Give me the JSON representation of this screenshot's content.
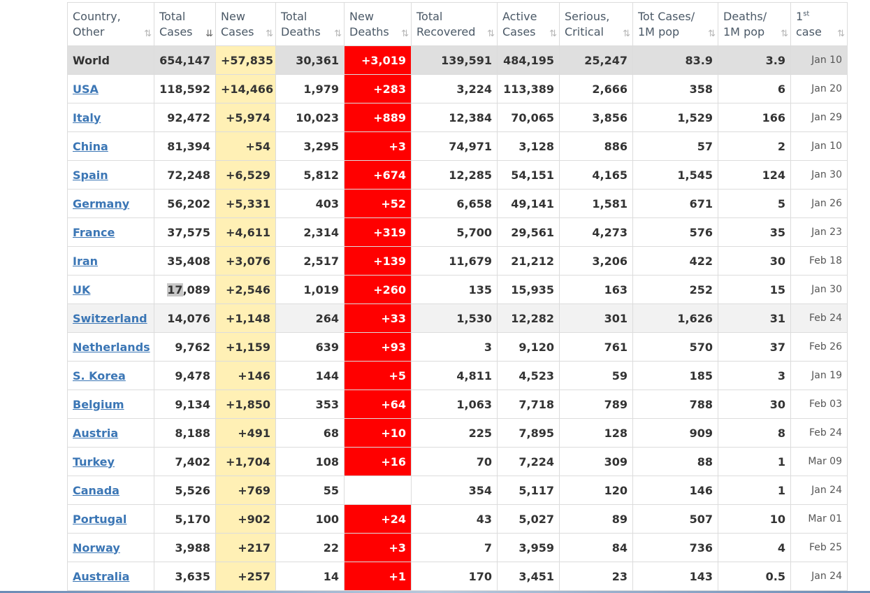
{
  "table": {
    "headers": [
      {
        "line1": "Country,",
        "line2": "Other",
        "sort": "⇅"
      },
      {
        "line1": "Total",
        "line2": "Cases",
        "sort": "⇊"
      },
      {
        "line1": "New",
        "line2": "Cases",
        "sort": "⇅"
      },
      {
        "line1": "Total",
        "line2": "Deaths",
        "sort": "⇅"
      },
      {
        "line1": "New",
        "line2": "Deaths",
        "sort": "⇅"
      },
      {
        "line1": "Total",
        "line2": "Recovered",
        "sort": "⇅"
      },
      {
        "line1": "Active",
        "line2": "Cases",
        "sort": "⇅"
      },
      {
        "line1": "Serious,",
        "line2": "Critical",
        "sort": "⇅"
      },
      {
        "line1": "Tot Cases/",
        "line2": "1M pop",
        "sort": "⇅"
      },
      {
        "line1": "Deaths/",
        "line2": "1M pop",
        "sort": "⇅"
      },
      {
        "line1": "1",
        "sup": "st",
        "line2": "case",
        "sort": "⇅"
      }
    ],
    "rows": [
      {
        "kind": "world",
        "country": "World",
        "total_cases": "654,147",
        "new_cases": "+57,835",
        "total_deaths": "30,361",
        "new_deaths": "+3,019",
        "recovered": "139,591",
        "active": "484,195",
        "serious": "25,247",
        "cases_per_m": "83.9",
        "deaths_per_m": "3.9",
        "first_case": "Jan 10"
      },
      {
        "country": "USA",
        "total_cases": "118,592",
        "new_cases": "+14,466",
        "total_deaths": "1,979",
        "new_deaths": "+283",
        "recovered": "3,224",
        "active": "113,389",
        "serious": "2,666",
        "cases_per_m": "358",
        "deaths_per_m": "6",
        "first_case": "Jan 20"
      },
      {
        "country": "Italy",
        "total_cases": "92,472",
        "new_cases": "+5,974",
        "total_deaths": "10,023",
        "new_deaths": "+889",
        "recovered": "12,384",
        "active": "70,065",
        "serious": "3,856",
        "cases_per_m": "1,529",
        "deaths_per_m": "166",
        "first_case": "Jan 29"
      },
      {
        "country": "China",
        "total_cases": "81,394",
        "new_cases": "+54",
        "total_deaths": "3,295",
        "new_deaths": "+3",
        "recovered": "74,971",
        "active": "3,128",
        "serious": "886",
        "cases_per_m": "57",
        "deaths_per_m": "2",
        "first_case": "Jan 10"
      },
      {
        "country": "Spain",
        "total_cases": "72,248",
        "new_cases": "+6,529",
        "total_deaths": "5,812",
        "new_deaths": "+674",
        "recovered": "12,285",
        "active": "54,151",
        "serious": "4,165",
        "cases_per_m": "1,545",
        "deaths_per_m": "124",
        "first_case": "Jan 30"
      },
      {
        "country": "Germany",
        "total_cases": "56,202",
        "new_cases": "+5,331",
        "total_deaths": "403",
        "new_deaths": "+52",
        "recovered": "6,658",
        "active": "49,141",
        "serious": "1,581",
        "cases_per_m": "671",
        "deaths_per_m": "5",
        "first_case": "Jan 26"
      },
      {
        "country": "France",
        "total_cases": "37,575",
        "new_cases": "+4,611",
        "total_deaths": "2,314",
        "new_deaths": "+319",
        "recovered": "5,700",
        "active": "29,561",
        "serious": "4,273",
        "cases_per_m": "576",
        "deaths_per_m": "35",
        "first_case": "Jan 23"
      },
      {
        "country": "Iran",
        "total_cases": "35,408",
        "new_cases": "+3,076",
        "total_deaths": "2,517",
        "new_deaths": "+139",
        "recovered": "11,679",
        "active": "21,212",
        "serious": "3,206",
        "cases_per_m": "422",
        "deaths_per_m": "30",
        "first_case": "Feb 18"
      },
      {
        "country": "UK",
        "total_cases_sel": "17",
        "total_cases_rest": ",089",
        "new_cases": "+2,546",
        "total_deaths": "1,019",
        "new_deaths": "+260",
        "recovered": "135",
        "active": "15,935",
        "serious": "163",
        "cases_per_m": "252",
        "deaths_per_m": "15",
        "first_case": "Jan 30"
      },
      {
        "kind": "alt",
        "country": "Switzerland",
        "total_cases": "14,076",
        "new_cases": "+1,148",
        "total_deaths": "264",
        "new_deaths": "+33",
        "recovered": "1,530",
        "active": "12,282",
        "serious": "301",
        "cases_per_m": "1,626",
        "deaths_per_m": "31",
        "first_case": "Feb 24"
      },
      {
        "country": "Netherlands",
        "total_cases": "9,762",
        "new_cases": "+1,159",
        "total_deaths": "639",
        "new_deaths": "+93",
        "recovered": "3",
        "active": "9,120",
        "serious": "761",
        "cases_per_m": "570",
        "deaths_per_m": "37",
        "first_case": "Feb 26"
      },
      {
        "country": "S. Korea",
        "total_cases": "9,478",
        "new_cases": "+146",
        "total_deaths": "144",
        "new_deaths": "+5",
        "recovered": "4,811",
        "active": "4,523",
        "serious": "59",
        "cases_per_m": "185",
        "deaths_per_m": "3",
        "first_case": "Jan 19"
      },
      {
        "country": "Belgium",
        "total_cases": "9,134",
        "new_cases": "+1,850",
        "total_deaths": "353",
        "new_deaths": "+64",
        "recovered": "1,063",
        "active": "7,718",
        "serious": "789",
        "cases_per_m": "788",
        "deaths_per_m": "30",
        "first_case": "Feb 03"
      },
      {
        "country": "Austria",
        "total_cases": "8,188",
        "new_cases": "+491",
        "total_deaths": "68",
        "new_deaths": "+10",
        "recovered": "225",
        "active": "7,895",
        "serious": "128",
        "cases_per_m": "909",
        "deaths_per_m": "8",
        "first_case": "Feb 24"
      },
      {
        "country": "Turkey",
        "total_cases": "7,402",
        "new_cases": "+1,704",
        "total_deaths": "108",
        "new_deaths": "+16",
        "recovered": "70",
        "active": "7,224",
        "serious": "309",
        "cases_per_m": "88",
        "deaths_per_m": "1",
        "first_case": "Mar 09"
      },
      {
        "country": "Canada",
        "total_cases": "5,526",
        "new_cases": "+769",
        "total_deaths": "55",
        "new_deaths": "",
        "recovered": "354",
        "active": "5,117",
        "serious": "120",
        "cases_per_m": "146",
        "deaths_per_m": "1",
        "first_case": "Jan 24"
      },
      {
        "country": "Portugal",
        "total_cases": "5,170",
        "new_cases": "+902",
        "total_deaths": "100",
        "new_deaths": "+24",
        "recovered": "43",
        "active": "5,027",
        "serious": "89",
        "cases_per_m": "507",
        "deaths_per_m": "10",
        "first_case": "Mar 01"
      },
      {
        "country": "Norway",
        "total_cases": "3,988",
        "new_cases": "+217",
        "total_deaths": "22",
        "new_deaths": "+3",
        "recovered": "7",
        "active": "3,959",
        "serious": "84",
        "cases_per_m": "736",
        "deaths_per_m": "4",
        "first_case": "Feb 25"
      },
      {
        "country": "Australia",
        "total_cases": "3,635",
        "new_cases": "+257",
        "total_deaths": "14",
        "new_deaths": "+1",
        "recovered": "170",
        "active": "3,451",
        "serious": "23",
        "cases_per_m": "143",
        "deaths_per_m": "0.5",
        "first_case": "Jan 24"
      }
    ]
  },
  "colors": {
    "new_cases_bg": "#fff0b5",
    "new_deaths_bg": "#ff0000",
    "world_row_bg": "#dfdfdf",
    "link": "#3b76b5"
  },
  "icons": {
    "sort": "sort-arrows-icon",
    "sort_active": "sort-desc-icon"
  }
}
